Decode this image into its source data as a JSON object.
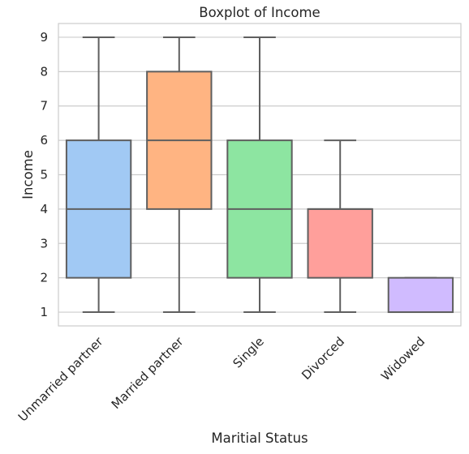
{
  "chart_data": {
    "type": "box",
    "title": "Boxplot of Income",
    "xlabel": "Maritial Status",
    "ylabel": "Income",
    "ylim": [
      0.6,
      9.4
    ],
    "yticks": [
      1,
      2,
      3,
      4,
      5,
      6,
      7,
      8,
      9
    ],
    "grid": "horizontal",
    "categories": [
      "Unmarried partner",
      "Married partner",
      "Single",
      "Divorced",
      "Widowed"
    ],
    "boxes": [
      {
        "category": "Unmarried partner",
        "min": 1,
        "q1": 2,
        "median": 4,
        "q3": 6,
        "max": 9,
        "color": "#a1c9f4"
      },
      {
        "category": "Married partner",
        "min": 1,
        "q1": 4,
        "median": 6,
        "q3": 8,
        "max": 9,
        "color": "#ffb482"
      },
      {
        "category": "Single",
        "min": 1,
        "q1": 2,
        "median": 4,
        "q3": 6,
        "max": 9,
        "color": "#8de5a1"
      },
      {
        "category": "Divorced",
        "min": 1,
        "q1": 2,
        "median": 4,
        "q3": 4,
        "max": 6,
        "color": "#ff9f9b"
      },
      {
        "category": "Widowed",
        "min": 1,
        "q1": 1,
        "median": 1,
        "q3": 2,
        "max": 2,
        "color": "#d0bbff"
      }
    ]
  }
}
